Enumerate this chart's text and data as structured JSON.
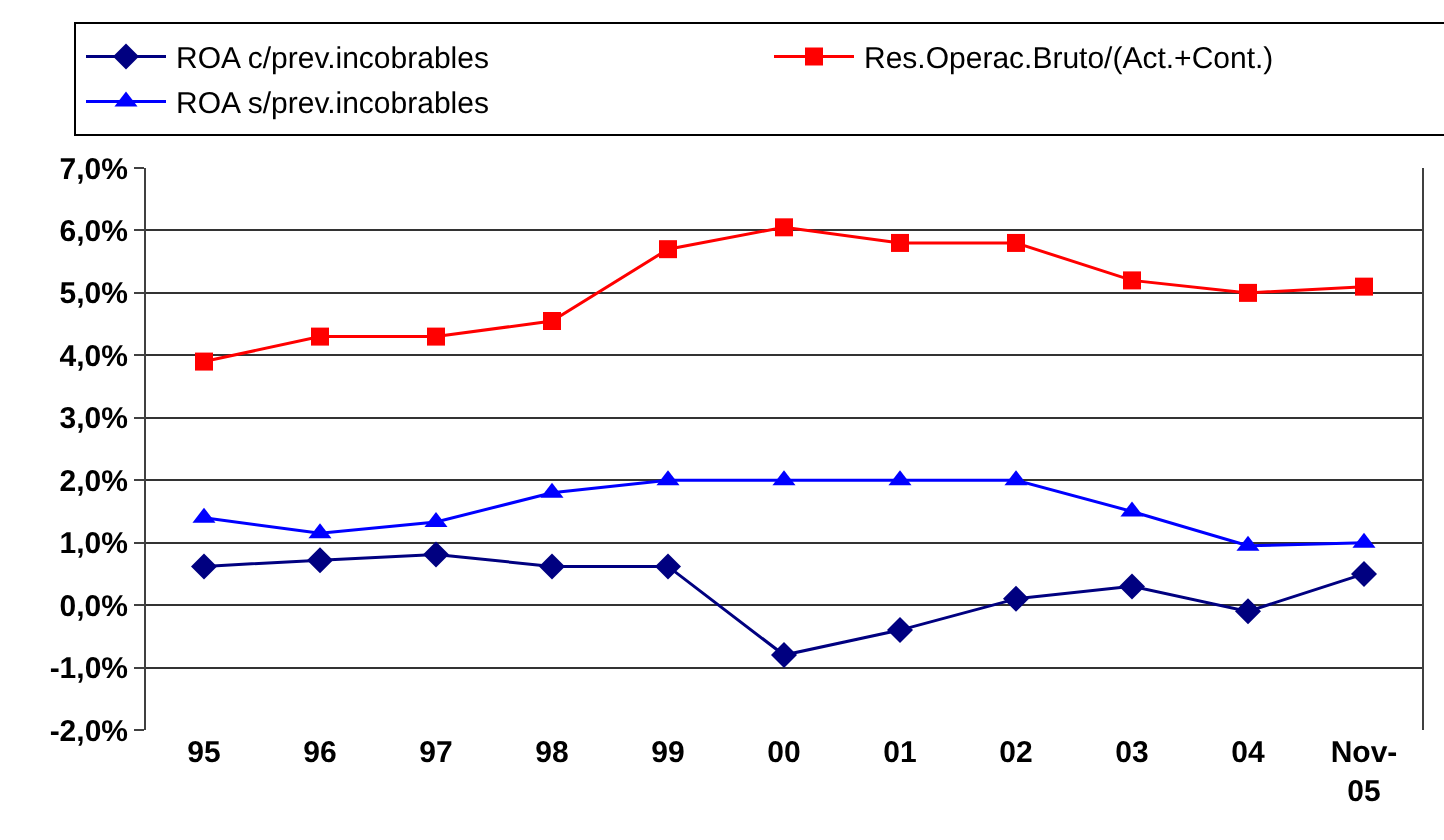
{
  "chart_data": {
    "type": "line",
    "categories": [
      "95",
      "96",
      "97",
      "98",
      "99",
      "00",
      "01",
      "02",
      "03",
      "04",
      "Nov-05"
    ],
    "series": [
      {
        "name": "ROA c/prev.incobrables",
        "color": "#000080",
        "marker": "diamond",
        "values": [
          0.62,
          0.72,
          0.81,
          0.62,
          0.62,
          -0.8,
          -0.4,
          0.1,
          0.3,
          -0.1,
          0.5
        ]
      },
      {
        "name": "Res.Operac.Bruto/(Act.+Cont.)",
        "color": "#ff0000",
        "marker": "square",
        "values": [
          3.9,
          4.3,
          4.3,
          4.55,
          5.7,
          6.05,
          5.8,
          5.8,
          5.2,
          5.0,
          5.1
        ]
      },
      {
        "name": "ROA s/prev.incobrables",
        "color": "#0000ff",
        "marker": "triangle",
        "values": [
          1.4,
          1.15,
          1.33,
          1.8,
          2.0,
          2.0,
          2.0,
          2.0,
          1.5,
          0.95,
          1.0
        ]
      }
    ],
    "ylim": [
      -2,
      7
    ],
    "yticks": [
      {
        "value": -2,
        "label": "-2,0%"
      },
      {
        "value": -1,
        "label": "-1,0%"
      },
      {
        "value": 0,
        "label": "0,0%"
      },
      {
        "value": 1,
        "label": "1,0%"
      },
      {
        "value": 2,
        "label": "2,0%"
      },
      {
        "value": 3,
        "label": "3,0%"
      },
      {
        "value": 4,
        "label": "4,0%"
      },
      {
        "value": 5,
        "label": "5,0%"
      },
      {
        "value": 6,
        "label": "6,0%"
      },
      {
        "value": 7,
        "label": "7,0%"
      }
    ],
    "grid": "y",
    "legend": "top"
  }
}
